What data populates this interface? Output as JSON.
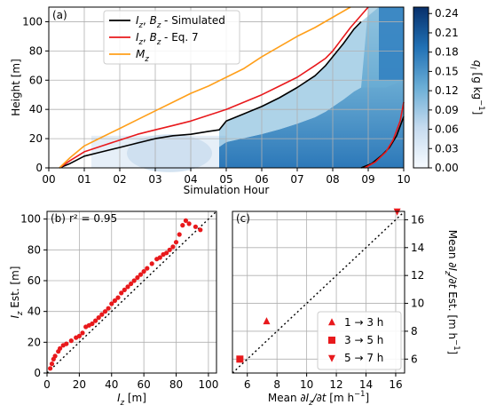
{
  "chart_data": [
    {
      "panel": "(a)",
      "type": "heatmap",
      "xlabel": "Simulation Hour",
      "ylabel": "Height [m]",
      "xlim": [
        0,
        10
      ],
      "ylim": [
        0,
        110
      ],
      "xticks": [
        "00",
        "01",
        "02",
        "03",
        "04",
        "05",
        "06",
        "07",
        "08",
        "09",
        "10"
      ],
      "yticks": [
        "0",
        "20",
        "40",
        "60",
        "80",
        "100"
      ],
      "grid": true,
      "legend_position": "top-left",
      "colorbar": {
        "label": "q_l [g kg^-1]",
        "range": [
          0,
          0.25
        ],
        "ticks": [
          "0.00",
          "0.03",
          "0.06",
          "0.09",
          "0.12",
          "0.15",
          "0.18",
          "0.21",
          "0.24"
        ],
        "colors": [
          "#f7fbff",
          "#c6dbef",
          "#6baed6",
          "#2171b5",
          "#08306b"
        ]
      },
      "series": [
        {
          "name": "I_z, B_z - Simulated",
          "color": "#000000",
          "x": [
            0.3,
            0.6,
            1.0,
            1.5,
            2.0,
            2.5,
            3.0,
            3.5,
            4.0,
            4.5,
            4.8,
            5.0,
            5.5,
            6.0,
            6.5,
            7.0,
            7.5,
            7.8,
            8.0,
            8.3,
            8.6,
            8.8
          ],
          "y": [
            0,
            3,
            8,
            11,
            14,
            17,
            20,
            22,
            23,
            25,
            26,
            32,
            37,
            42,
            48,
            55,
            63,
            70,
            76,
            85,
            95,
            100
          ]
        },
        {
          "name": "I_z, B_z - Eq. 7",
          "color": "#e8191c",
          "x": [
            0.3,
            0.6,
            1.0,
            1.5,
            2.0,
            2.5,
            3.0,
            3.5,
            4.0,
            4.5,
            5.0,
            5.5,
            6.0,
            6.5,
            7.0,
            7.5,
            7.8,
            8.0,
            8.5,
            9.0
          ],
          "y": [
            0,
            5,
            11,
            15,
            19,
            23,
            26,
            29,
            32,
            36,
            40,
            45,
            50,
            56,
            62,
            70,
            75,
            80,
            96,
            110
          ]
        },
        {
          "name": "M_z",
          "color": "#ff9f1a",
          "x": [
            0.3,
            0.6,
            1.0,
            1.5,
            2.0,
            2.5,
            3.0,
            3.5,
            4.0,
            4.5,
            5.0,
            5.5,
            6.0,
            6.5,
            7.0,
            7.5,
            8.0,
            8.5
          ],
          "y": [
            0,
            7,
            15,
            21,
            27,
            33,
            39,
            45,
            51,
            56,
            62,
            68,
            76,
            83,
            90,
            96,
            103,
            110
          ]
        },
        {
          "name": "",
          "color": "#000000",
          "x": [
            8.8,
            9.1,
            9.4,
            9.6,
            9.8,
            10.0
          ],
          "y": [
            0,
            3,
            9,
            14,
            22,
            35
          ]
        },
        {
          "name": "",
          "color": "#e8191c",
          "x": [
            8.9,
            9.2,
            9.5,
            9.7,
            9.9,
            10.0
          ],
          "y": [
            0,
            4,
            11,
            19,
            32,
            45
          ]
        }
      ]
    },
    {
      "panel": "(b)",
      "type": "scatter",
      "annotation": "r² = 0.95",
      "xlabel": "I_z [m]",
      "ylabel": "I_z Est. [m]",
      "xlim": [
        0,
        105
      ],
      "ylim": [
        0,
        105
      ],
      "xticks": [
        "0",
        "20",
        "40",
        "60",
        "80",
        "100"
      ],
      "yticks": [
        "0",
        "20",
        "40",
        "60",
        "80",
        "100"
      ],
      "grid": true,
      "color": "#e8191c",
      "points": [
        [
          2,
          3
        ],
        [
          3,
          6
        ],
        [
          4,
          9
        ],
        [
          5,
          11
        ],
        [
          7,
          14
        ],
        [
          8,
          16
        ],
        [
          10,
          18
        ],
        [
          12,
          19
        ],
        [
          15,
          21
        ],
        [
          18,
          23
        ],
        [
          20,
          24
        ],
        [
          22,
          26
        ],
        [
          24,
          30
        ],
        [
          26,
          31
        ],
        [
          28,
          32
        ],
        [
          30,
          34
        ],
        [
          32,
          36
        ],
        [
          34,
          38
        ],
        [
          36,
          40
        ],
        [
          38,
          42
        ],
        [
          40,
          45
        ],
        [
          42,
          47
        ],
        [
          44,
          49
        ],
        [
          46,
          52
        ],
        [
          48,
          54
        ],
        [
          50,
          56
        ],
        [
          52,
          58
        ],
        [
          54,
          60
        ],
        [
          56,
          62
        ],
        [
          58,
          64
        ],
        [
          60,
          66
        ],
        [
          62,
          68
        ],
        [
          65,
          71
        ],
        [
          68,
          74
        ],
        [
          70,
          75
        ],
        [
          72,
          77
        ],
        [
          74,
          78
        ],
        [
          76,
          80
        ],
        [
          78,
          82
        ],
        [
          80,
          85
        ],
        [
          82,
          90
        ],
        [
          84,
          96
        ],
        [
          86,
          99
        ],
        [
          88,
          97
        ],
        [
          92,
          95
        ],
        [
          95,
          93
        ]
      ]
    },
    {
      "panel": "(c)",
      "type": "scatter",
      "xlabel": "Mean ∂I_z/∂t [m h^-1]",
      "ylabel": "Mean ∂I_z/∂t Est. [m h^-1]",
      "xlim": [
        5,
        16.6
      ],
      "ylim": [
        5,
        16.6
      ],
      "xticks": [
        "6",
        "8",
        "10",
        "12",
        "14",
        "16"
      ],
      "yticks": [
        "6",
        "8",
        "10",
        "12",
        "14",
        "16"
      ],
      "grid": true,
      "legend_position": "bottom-right",
      "series": [
        {
          "name": "1 → 3 h",
          "marker": "triangle-up",
          "color": "#e8191c",
          "x": [
            7.3
          ],
          "y": [
            8.7
          ]
        },
        {
          "name": "3 → 5 h",
          "marker": "square",
          "color": "#e8191c",
          "x": [
            5.5
          ],
          "y": [
            6.0
          ]
        },
        {
          "name": "5 → 7 h",
          "marker": "triangle-down",
          "color": "#e8191c",
          "x": [
            16.1
          ],
          "y": [
            16.6
          ]
        }
      ]
    }
  ]
}
